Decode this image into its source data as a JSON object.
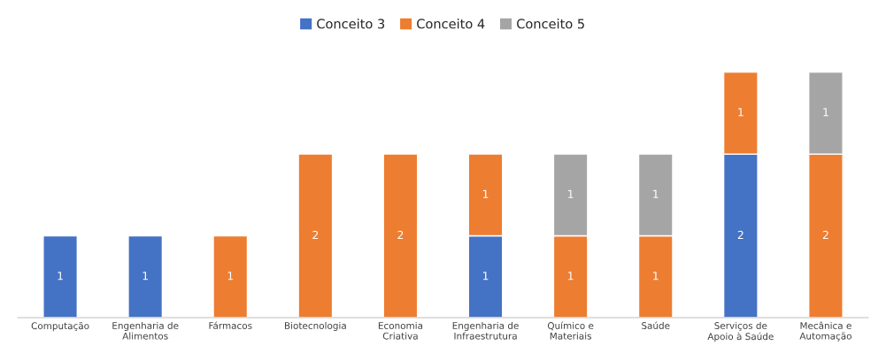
{
  "chart_data": {
    "type": "bar",
    "stacked": true,
    "data_labels": true,
    "legend": "top",
    "tick_labels": "x",
    "categories": [
      "Computação",
      "Engenharia de Alimentos",
      "Fármacos",
      "Biotecnologia",
      "Economia Criativa",
      "Engenharia de Infraestrutura",
      "Químico e Materiais",
      "Saúde",
      "Serviços de Apoio à Saúde",
      "Mecânica e Automação"
    ],
    "series": [
      {
        "name": "Conceito 3",
        "color": "#4472c4",
        "values": [
          1,
          1,
          null,
          null,
          null,
          1,
          null,
          null,
          2,
          null
        ]
      },
      {
        "name": "Conceito 4",
        "color": "#ed7d31",
        "values": [
          null,
          null,
          1,
          2,
          2,
          1,
          1,
          1,
          1,
          2
        ]
      },
      {
        "name": "Conceito 5",
        "color": "#a5a5a5",
        "values": [
          null,
          null,
          null,
          null,
          null,
          null,
          1,
          1,
          null,
          1
        ]
      }
    ]
  }
}
